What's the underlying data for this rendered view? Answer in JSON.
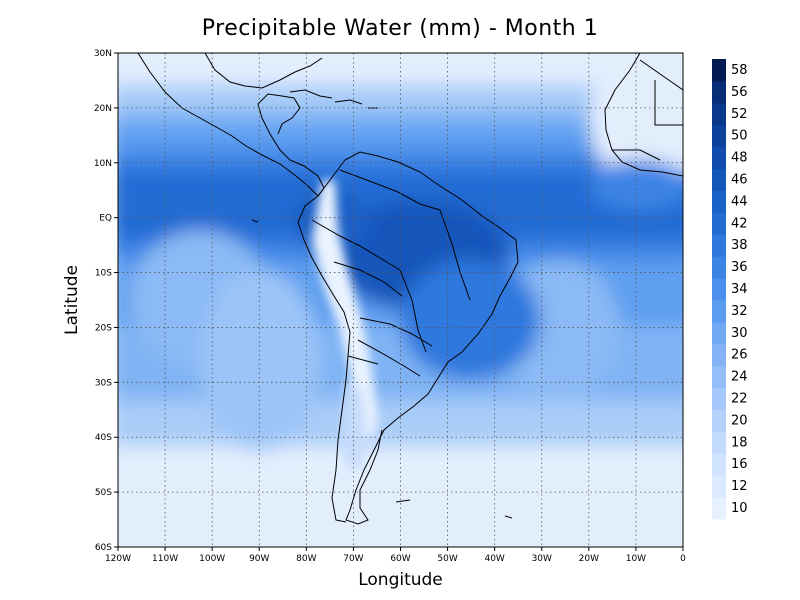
{
  "title": "Precipitable Water (mm) - Month 1",
  "xlabel": "Longitude",
  "ylabel": "Latitude",
  "x_ticks": [
    "120W",
    "110W",
    "100W",
    "90W",
    "80W",
    "70W",
    "60W",
    "50W",
    "40W",
    "30W",
    "20W",
    "10W",
    "0"
  ],
  "y_ticks": [
    "30N",
    "20N",
    "10N",
    "EQ",
    "10S",
    "20S",
    "30S",
    "40S",
    "50S",
    "60S"
  ],
  "colorbar": {
    "levels": [
      "10",
      "12",
      "16",
      "18",
      "20",
      "22",
      "24",
      "26",
      "30",
      "32",
      "34",
      "36",
      "38",
      "42",
      "44",
      "46",
      "48",
      "50",
      "52",
      "56",
      "58"
    ],
    "colors": [
      "#e6f0ff",
      "#dceaff",
      "#d0e3ff",
      "#c2dbfd",
      "#b4d2fb",
      "#a4c8f9",
      "#94bef7",
      "#84b4f5",
      "#6fa8f3",
      "#5c9cf0",
      "#4a90ec",
      "#3c84e6",
      "#2f78de",
      "#236cd4",
      "#1a61c8",
      "#1457bb",
      "#0f4cac",
      "#0c429c",
      "#09388a",
      "#062d76",
      "#031d52"
    ]
  },
  "map": {
    "lon_range": [
      -120,
      0
    ],
    "lat_range": [
      -60,
      30
    ],
    "grid": "dotted",
    "variable": "Precipitable Water (mm)",
    "month": "1"
  }
}
